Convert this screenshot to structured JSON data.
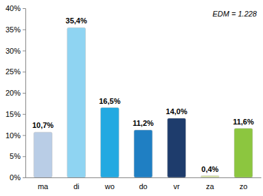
{
  "chart_data": {
    "type": "bar",
    "categories": [
      "ma",
      "di",
      "wo",
      "do",
      "vr",
      "za",
      "zo"
    ],
    "values": [
      10.7,
      35.4,
      16.5,
      11.2,
      14.0,
      0.4,
      11.6
    ],
    "value_labels": [
      "10,7%",
      "35,4%",
      "16,5%",
      "11,2%",
      "14,0%",
      "0,4%",
      "11,6%"
    ],
    "colors": [
      "#b9cde6",
      "#8fd4f2",
      "#22a9e1",
      "#1f7fc3",
      "#1e3c6c",
      "#d8e6a6",
      "#8cc63f"
    ],
    "ylim": [
      0,
      40
    ],
    "yticks": [
      {
        "value": 0,
        "label": "0%"
      },
      {
        "value": 5,
        "label": "5%"
      },
      {
        "value": 10,
        "label": "10%"
      },
      {
        "value": 15,
        "label": "15%"
      },
      {
        "value": 20,
        "label": "20%"
      },
      {
        "value": 25,
        "label": "25%"
      },
      {
        "value": 30,
        "label": "30%"
      },
      {
        "value": 35,
        "label": "35%"
      },
      {
        "value": 40,
        "label": "40%"
      }
    ],
    "grid": false,
    "data_labels": true,
    "annotations": [
      "EDM = 1.228"
    ]
  }
}
